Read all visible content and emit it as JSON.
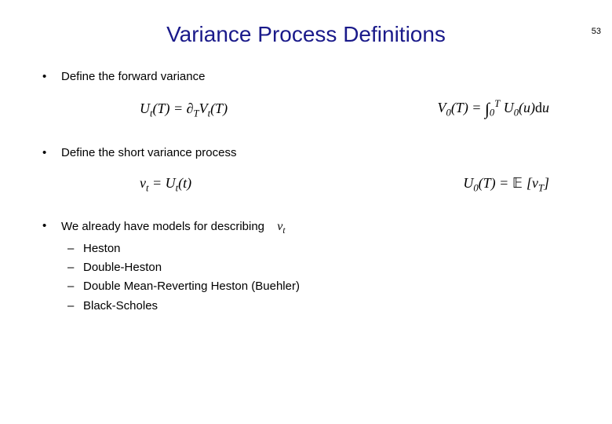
{
  "page_number": "53",
  "title": "Variance Process Definitions",
  "bullet1": "Define the forward variance",
  "eq1_left": "U<sub>t</sub>(T) = ∂<sub>T</sub>V<sub>t</sub>(T)",
  "eq1_right": "V<sub>0</sub>(T) = <span class='intsym'>∫</span><sub>0</sub><sup>T</sup> U<sub>0</sub>(u)<span class='upright'>d</span>u",
  "bullet2": "Define the short variance process",
  "eq2_left": "v<sub>t</sub> = U<sub>t</sub>(t)",
  "eq2_right": "U<sub>0</sub>(T) = <span class='bb'>𝔼</span> [v<sub>T</sub>]",
  "bullet3_text": "We already have models for describing",
  "bullet3_math": "v<sub>t</sub>",
  "sub1": "Heston",
  "sub2": "Double-Heston",
  "sub3": "Double Mean-Reverting Heston (Buehler)",
  "sub4": "Black-Scholes"
}
